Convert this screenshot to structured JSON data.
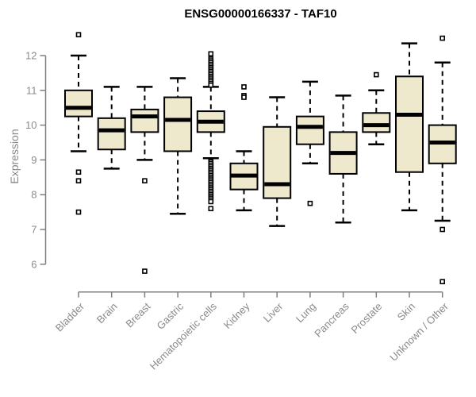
{
  "chart_data": {
    "type": "boxplot",
    "title": "ENSG00000166337 - TAF10",
    "ylabel": "Expression",
    "yticks": [
      6,
      7,
      8,
      9,
      10,
      11,
      12
    ],
    "ylim": [
      5.4,
      12.7
    ],
    "grid": false,
    "legend_position": "none",
    "categories": [
      "Bladder",
      "Brain",
      "Breast",
      "Gastric",
      "Hematopoietic cells",
      "Kidney",
      "Liver",
      "Lung",
      "Pancreas",
      "Prostate",
      "Skin",
      "Unknown / Other"
    ],
    "series": [
      {
        "name": "Bladder",
        "whisker_low": 9.25,
        "q1": 10.25,
        "median": 10.5,
        "q3": 11.0,
        "whisker_high": 12.0,
        "outliers": [
          12.6,
          8.65,
          8.4,
          7.5
        ]
      },
      {
        "name": "Brain",
        "whisker_low": 8.75,
        "q1": 9.3,
        "median": 9.85,
        "q3": 10.2,
        "whisker_high": 11.1,
        "outliers": []
      },
      {
        "name": "Breast",
        "whisker_low": 9.0,
        "q1": 9.8,
        "median": 10.25,
        "q3": 10.45,
        "whisker_high": 11.1,
        "outliers": [
          8.4,
          5.8
        ]
      },
      {
        "name": "Gastric",
        "whisker_low": 7.45,
        "q1": 9.25,
        "median": 10.15,
        "q3": 10.8,
        "whisker_high": 11.35,
        "outliers": []
      },
      {
        "name": "Hematopoietic cells",
        "whisker_low": 9.05,
        "q1": 9.8,
        "median": 10.1,
        "q3": 10.4,
        "whisker_high": 11.1,
        "outliers": [
          12.05,
          11.9,
          11.85,
          11.8,
          11.75,
          11.7,
          11.65,
          11.6,
          11.55,
          11.5,
          11.45,
          11.4,
          11.35,
          11.3,
          11.25,
          11.2,
          11.15,
          8.95,
          8.9,
          8.85,
          8.8,
          8.75,
          8.7,
          8.65,
          8.6,
          8.55,
          8.5,
          8.45,
          8.4,
          8.35,
          8.3,
          8.25,
          8.2,
          8.15,
          8.1,
          8.05,
          8.0,
          7.95,
          7.9,
          7.85,
          7.8,
          7.6
        ]
      },
      {
        "name": "Kidney",
        "whisker_low": 7.55,
        "q1": 8.15,
        "median": 8.55,
        "q3": 8.9,
        "whisker_high": 9.25,
        "outliers": [
          11.1,
          10.85,
          10.8
        ]
      },
      {
        "name": "Liver",
        "whisker_low": 7.1,
        "q1": 7.9,
        "median": 8.3,
        "q3": 9.95,
        "whisker_high": 10.8,
        "outliers": []
      },
      {
        "name": "Lung",
        "whisker_low": 8.9,
        "q1": 9.45,
        "median": 9.95,
        "q3": 10.25,
        "whisker_high": 11.25,
        "outliers": [
          7.75
        ]
      },
      {
        "name": "Pancreas",
        "whisker_low": 7.2,
        "q1": 8.6,
        "median": 9.2,
        "q3": 9.8,
        "whisker_high": 10.85,
        "outliers": []
      },
      {
        "name": "Prostate",
        "whisker_low": 9.45,
        "q1": 9.8,
        "median": 10.0,
        "q3": 10.35,
        "whisker_high": 11.0,
        "outliers": [
          11.45
        ]
      },
      {
        "name": "Skin",
        "whisker_low": 7.55,
        "q1": 8.65,
        "median": 10.3,
        "q3": 11.4,
        "whisker_high": 12.35,
        "outliers": []
      },
      {
        "name": "Unknown / Other",
        "whisker_low": 7.25,
        "q1": 8.9,
        "median": 9.5,
        "q3": 10.0,
        "whisker_high": 11.8,
        "outliers": [
          12.5,
          7.0,
          5.5
        ]
      }
    ],
    "colors": {
      "box_fill": "#EEE8CD",
      "line": "#000000",
      "axis": "#7F7F7F",
      "tick_label": "#8A8A8A",
      "title": "#000000",
      "background": "#FFFFFF"
    }
  }
}
